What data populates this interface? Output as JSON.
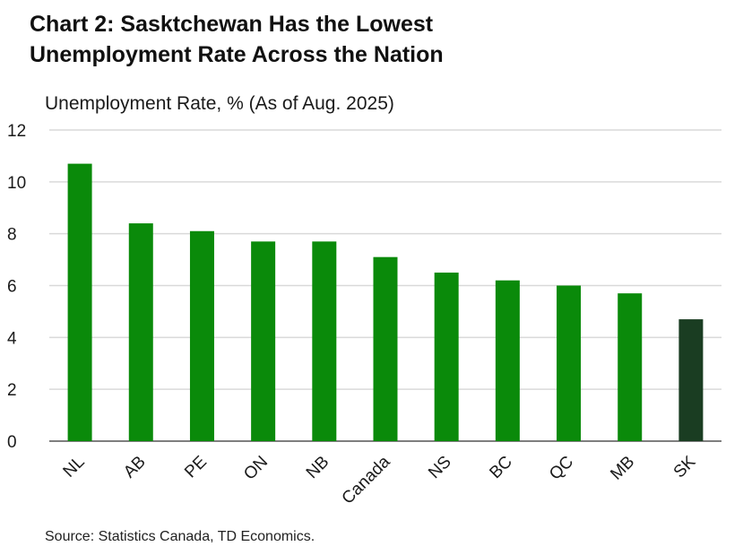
{
  "title_line1": "Chart 2: Sasktchewan Has the Lowest",
  "title_line2": "Unemployment Rate Across the Nation",
  "source": "Source: Statistics Canada, TD Economics.",
  "colors": {
    "bar": "#0a8a0a",
    "highlight": "#1a3d22",
    "grid": "#d9d9d9",
    "axis": "#555555"
  },
  "chart_data": {
    "type": "bar",
    "title": "Chart 2: Sasktchewan Has the Lowest Unemployment Rate Across the Nation",
    "ylabel": "Unemployment Rate, % (As of Aug. 2025)",
    "xlabel": "",
    "categories": [
      "NL",
      "AB",
      "PE",
      "ON",
      "NB",
      "Canada",
      "NS",
      "BC",
      "QC",
      "MB",
      "SK"
    ],
    "values": [
      10.7,
      8.4,
      8.1,
      7.7,
      7.7,
      7.1,
      6.5,
      6.2,
      6.0,
      5.7,
      4.7
    ],
    "highlight_category": "SK",
    "ylim": [
      0,
      12
    ],
    "yticks": [
      0,
      2,
      4,
      6,
      8,
      10,
      12
    ],
    "grid": true,
    "legend": "none"
  }
}
